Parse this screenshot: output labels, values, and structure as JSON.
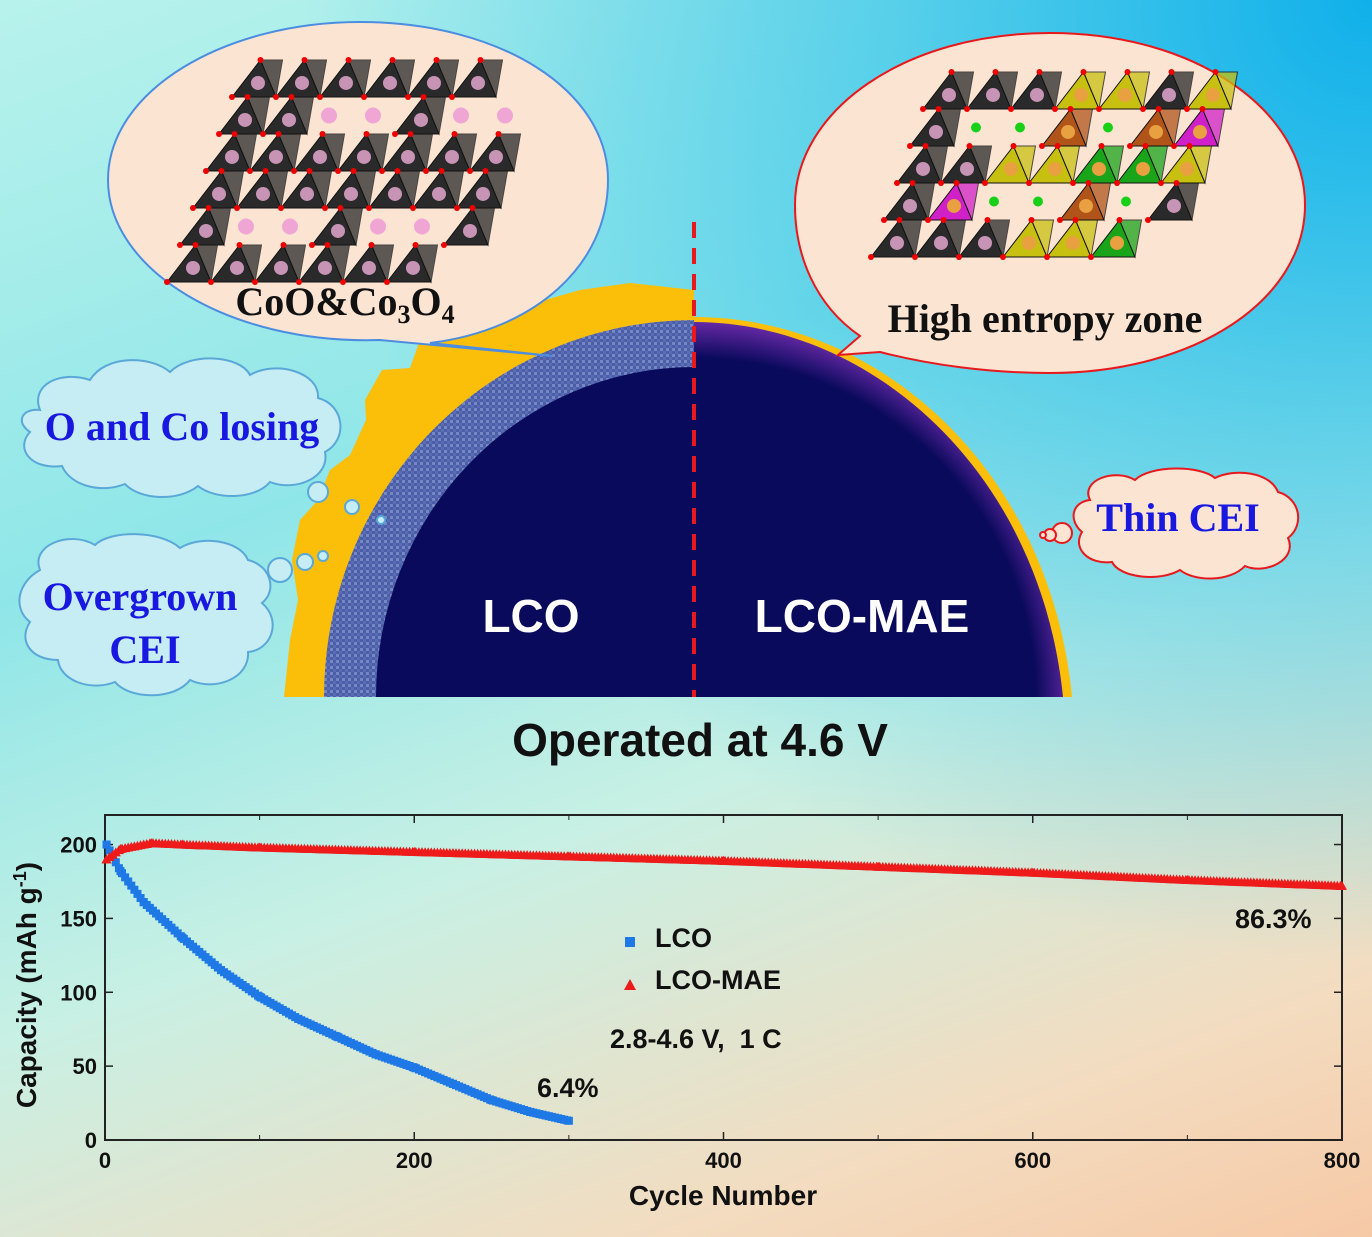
{
  "illustration": {
    "left_bubble_label_main": "CoO&Co",
    "left_bubble_sub1": "3",
    "left_bubble_mid": "O",
    "left_bubble_sub2": "4",
    "right_bubble_label": "High entropy zone",
    "cloud_o_co": "O and Co losing",
    "cloud_overgrown_line1": "Overgrown",
    "cloud_overgrown_line2": "CEI",
    "cloud_thin_cei": "Thin CEI",
    "particle_left_label": "LCO",
    "particle_right_label": "LCO-MAE",
    "operated_label": "Operated at 4.6 V"
  },
  "colors": {
    "particle_core": "#0a0a5c",
    "cei_yellow": "#fbbf0a",
    "divider_red": "#e8191c",
    "cloud_text": "#1818e0",
    "lco_series": "#1e78e6",
    "mae_series": "#ee1b1b"
  },
  "chart_data": {
    "type": "scatter",
    "xlabel": "Cycle Number",
    "ylabel_main": "Capacity (mAh g",
    "ylabel_sup": "-1",
    "ylabel_end": ")",
    "xlim": [
      0,
      800
    ],
    "ylim": [
      0,
      220
    ],
    "xticks": [
      "0",
      "200",
      "400",
      "600",
      "800"
    ],
    "yticks": [
      "0",
      "50",
      "100",
      "150",
      "200"
    ],
    "legend_position": "center",
    "annotation_conditions": "2.8-4.6 V,  1 C",
    "series": [
      {
        "name": "LCO",
        "marker": "square",
        "retention_label": "6.4%",
        "points": [
          [
            1,
            200
          ],
          [
            10,
            182
          ],
          [
            25,
            161
          ],
          [
            50,
            137
          ],
          [
            75,
            115
          ],
          [
            100,
            97
          ],
          [
            125,
            82
          ],
          [
            150,
            70
          ],
          [
            175,
            58
          ],
          [
            200,
            49
          ],
          [
            225,
            38
          ],
          [
            250,
            27
          ],
          [
            275,
            19
          ],
          [
            300,
            13
          ]
        ]
      },
      {
        "name": "LCO-MAE",
        "marker": "triangle",
        "retention_label": "86.3%",
        "points": [
          [
            1,
            190
          ],
          [
            10,
            197
          ],
          [
            30,
            201
          ],
          [
            50,
            200
          ],
          [
            100,
            198
          ],
          [
            200,
            195
          ],
          [
            300,
            192
          ],
          [
            400,
            189
          ],
          [
            500,
            185
          ],
          [
            600,
            181
          ],
          [
            700,
            176
          ],
          [
            800,
            172
          ]
        ]
      }
    ]
  }
}
